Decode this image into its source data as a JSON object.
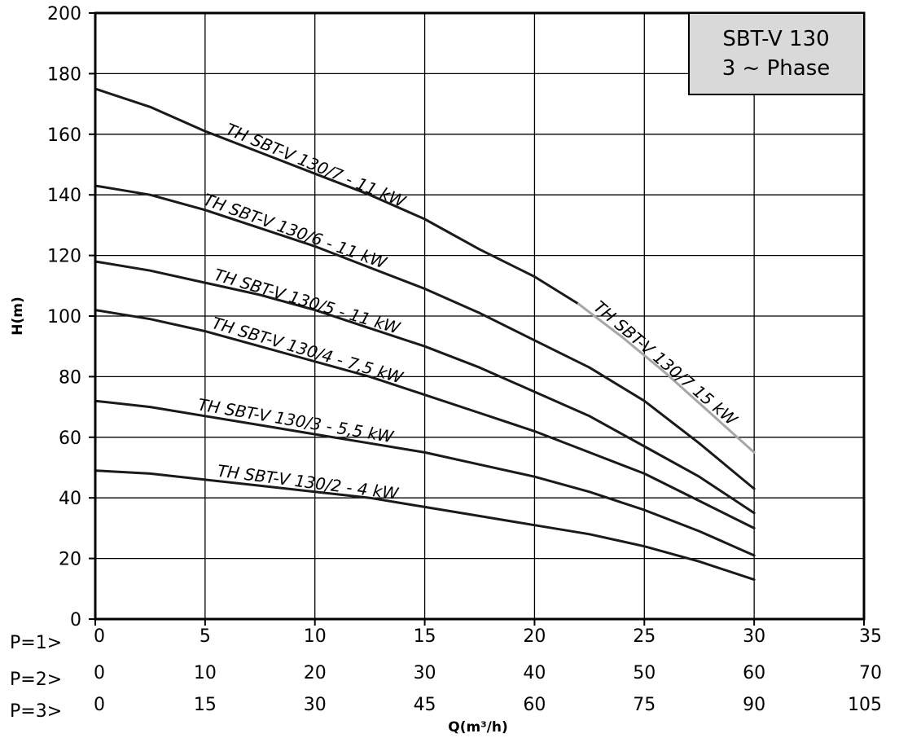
{
  "chart_data": {
    "type": "line",
    "title": "",
    "ylabel": "H(m)",
    "xlabel": "Q(m³/h)",
    "ylim": [
      0,
      200
    ],
    "xlim": [
      0,
      35
    ],
    "grid": true,
    "y_ticks": [
      0,
      20,
      40,
      60,
      80,
      100,
      120,
      140,
      160,
      180,
      200
    ],
    "flow_scales": [
      {
        "label": "P=1>",
        "ticks": [
          "0",
          "5",
          "10",
          "15",
          "20",
          "25",
          "30",
          "35"
        ]
      },
      {
        "label": "P=2>",
        "ticks": [
          "0",
          "10",
          "20",
          "30",
          "40",
          "50",
          "60",
          "70"
        ]
      },
      {
        "label": "P=3>",
        "ticks": [
          "0",
          "15",
          "30",
          "45",
          "60",
          "75",
          "90",
          "105"
        ]
      }
    ],
    "info_box": [
      "SBT-V 130",
      "3 ~ Phase"
    ],
    "series": [
      {
        "name": "TH SBT-V 130/7 - 11 kW",
        "color": "#1a1a1a",
        "x": [
          0,
          2.5,
          5,
          7.5,
          10,
          12.5,
          15,
          17.5,
          20,
          22
        ],
        "y": [
          175,
          169,
          161,
          154,
          147,
          140,
          132,
          122,
          113,
          104
        ]
      },
      {
        "name": "TH SBT-V 130/7 15 kW",
        "color": "#a6a6a6",
        "x": [
          22,
          24,
          26,
          28,
          30
        ],
        "y": [
          104,
          93,
          81,
          68,
          55
        ]
      },
      {
        "name": "TH SBT-V 130/6 - 11 kW",
        "color": "#1a1a1a",
        "x": [
          0,
          2.5,
          5,
          7.5,
          10,
          12.5,
          15,
          17.5,
          20,
          22.5,
          25,
          27.5,
          30
        ],
        "y": [
          143,
          140,
          135,
          129,
          123,
          116,
          109,
          101,
          92,
          83,
          72,
          58,
          43
        ]
      },
      {
        "name": "TH SBT-V 130/5 - 11 kW",
        "color": "#1a1a1a",
        "x": [
          0,
          2.5,
          5,
          7.5,
          10,
          12.5,
          15,
          17.5,
          20,
          22.5,
          25,
          27.5,
          30
        ],
        "y": [
          118,
          115,
          111,
          107,
          102,
          96,
          90,
          83,
          75,
          67,
          57,
          47,
          35
        ]
      },
      {
        "name": "TH SBT-V 130/4 - 7,5 kW",
        "color": "#1a1a1a",
        "x": [
          0,
          2.5,
          5,
          7.5,
          10,
          12.5,
          15,
          17.5,
          20,
          22.5,
          25,
          27.5,
          30
        ],
        "y": [
          102,
          99,
          95,
          90,
          85,
          80,
          74,
          68,
          62,
          55,
          48,
          39,
          30
        ]
      },
      {
        "name": "TH SBT-V 130/3 - 5,5 kW",
        "color": "#1a1a1a",
        "x": [
          0,
          2.5,
          5,
          7.5,
          10,
          12.5,
          15,
          17.5,
          20,
          22.5,
          25,
          27.5,
          30
        ],
        "y": [
          72,
          70,
          67,
          64,
          61,
          58,
          55,
          51,
          47,
          42,
          36,
          29,
          21
        ]
      },
      {
        "name": "TH SBT-V 130/2 - 4 kW",
        "color": "#1a1a1a",
        "x": [
          0,
          2.5,
          5,
          7.5,
          10,
          12.5,
          15,
          17.5,
          20,
          22.5,
          25,
          27.5,
          30
        ],
        "y": [
          49,
          48,
          46,
          44,
          42,
          40,
          37,
          34,
          31,
          28,
          24,
          19,
          13
        ]
      }
    ]
  }
}
